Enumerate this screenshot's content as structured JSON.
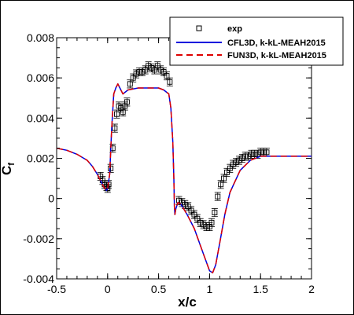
{
  "chart_data": {
    "type": "line",
    "xlabel": "x/c",
    "ylabel_main": "C",
    "ylabel_sub": "f",
    "xlim": [
      -0.5,
      2
    ],
    "ylim": [
      -0.004,
      0.008
    ],
    "xticks": [
      "-0.5",
      "0",
      "0.5",
      "1",
      "1.5",
      "2"
    ],
    "xtick_values": [
      -0.5,
      0,
      0.5,
      1,
      1.5,
      2
    ],
    "yticks": [
      "-0.004",
      "-0.002",
      "0",
      "0.002",
      "0.004",
      "0.006",
      "0.008"
    ],
    "ytick_values": [
      -0.004,
      -0.002,
      0,
      0.002,
      0.004,
      0.006,
      0.008
    ],
    "legend_position": "top-right",
    "series": [
      {
        "name": "exp",
        "kind": "scatter",
        "marker": "square",
        "color": "#000000",
        "x": [
          -0.07,
          -0.05,
          -0.03,
          -0.01,
          0.0,
          0.01,
          0.03,
          0.05,
          0.07,
          0.09,
          0.11,
          0.13,
          0.15,
          0.17,
          0.19,
          0.22,
          0.25,
          0.28,
          0.31,
          0.34,
          0.37,
          0.4,
          0.43,
          0.46,
          0.49,
          0.52,
          0.55,
          0.58,
          0.61,
          0.7,
          0.73,
          0.76,
          0.79,
          0.82,
          0.85,
          0.88,
          0.91,
          0.94,
          0.97,
          1.0,
          1.02,
          1.05,
          1.08,
          1.11,
          1.14,
          1.17,
          1.2,
          1.23,
          1.26,
          1.29,
          1.32,
          1.35,
          1.38,
          1.41,
          1.44,
          1.47,
          1.5,
          1.53,
          1.56
        ],
        "y": [
          0.0011,
          0.0009,
          0.0007,
          0.0006,
          0.0005,
          0.0007,
          0.0015,
          0.0025,
          0.0035,
          0.0042,
          0.0046,
          0.0045,
          0.0043,
          0.0046,
          0.0048,
          0.0057,
          0.006,
          0.0062,
          0.0063,
          0.0063,
          0.0064,
          0.0066,
          0.0065,
          0.0064,
          0.0066,
          0.0064,
          0.0063,
          0.0061,
          0.0058,
          -0.0001,
          -0.0002,
          -0.0003,
          -0.0004,
          -0.0006,
          -0.0008,
          -0.001,
          -0.0012,
          -0.0013,
          -0.0014,
          -0.0014,
          -0.0012,
          -0.0007,
          0.0001,
          0.0007,
          0.001,
          0.0013,
          0.0015,
          0.0017,
          0.0018,
          0.0019,
          0.002,
          0.0021,
          0.0021,
          0.0022,
          0.0022,
          0.0022,
          0.0023,
          0.0023,
          0.0023
        ],
        "yerr": 0.0002
      },
      {
        "name": "CFL3D, k-kL-MEAH2015",
        "kind": "line",
        "color": "#0000dd",
        "dash": "solid",
        "x": [
          -0.5,
          -0.4,
          -0.3,
          -0.2,
          -0.15,
          -0.1,
          -0.06,
          -0.03,
          -0.01,
          0.0,
          0.02,
          0.04,
          0.06,
          0.08,
          0.1,
          0.12,
          0.15,
          0.2,
          0.3,
          0.4,
          0.5,
          0.55,
          0.6,
          0.62,
          0.64,
          0.65,
          0.655,
          0.66,
          0.67,
          0.69,
          0.72,
          0.78,
          0.85,
          0.9,
          0.95,
          1.0,
          1.03,
          1.06,
          1.1,
          1.15,
          1.2,
          1.3,
          1.4,
          1.5,
          1.55,
          1.6,
          1.8,
          2.0
        ],
        "y": [
          0.0025,
          0.0024,
          0.0022,
          0.0019,
          0.0016,
          0.0012,
          0.0008,
          0.0005,
          0.0004,
          0.0005,
          0.0012,
          0.0035,
          0.0052,
          0.0055,
          0.0057,
          0.0055,
          0.0052,
          0.0054,
          0.0055,
          0.0055,
          0.0055,
          0.0054,
          0.0052,
          0.0045,
          0.0028,
          0.001,
          -0.0004,
          -0.0008,
          -0.0005,
          -0.0002,
          -0.0003,
          -0.0008,
          -0.0015,
          -0.0022,
          -0.0029,
          -0.0036,
          -0.0037,
          -0.0033,
          -0.0022,
          -0.0008,
          0.0003,
          0.0014,
          0.0019,
          0.0021,
          0.0021,
          0.0021,
          0.0021,
          0.0021
        ]
      },
      {
        "name": "FUN3D, k-kL-MEAH2015",
        "kind": "line",
        "color": "#dd0000",
        "dash": "dashed",
        "x": [
          -0.5,
          -0.4,
          -0.3,
          -0.2,
          -0.15,
          -0.1,
          -0.06,
          -0.03,
          -0.01,
          0.0,
          0.02,
          0.04,
          0.06,
          0.08,
          0.1,
          0.12,
          0.15,
          0.2,
          0.3,
          0.4,
          0.5,
          0.55,
          0.6,
          0.62,
          0.64,
          0.65,
          0.655,
          0.66,
          0.67,
          0.69,
          0.72,
          0.78,
          0.85,
          0.9,
          0.95,
          1.0,
          1.03,
          1.06,
          1.1,
          1.15,
          1.2,
          1.3,
          1.4,
          1.5,
          1.55,
          1.6,
          1.8,
          2.0
        ],
        "y": [
          0.0025,
          0.0024,
          0.0022,
          0.0019,
          0.0016,
          0.0012,
          0.0008,
          0.0005,
          0.0004,
          0.0005,
          0.0012,
          0.0035,
          0.0052,
          0.0055,
          0.0057,
          0.0055,
          0.0052,
          0.0054,
          0.0055,
          0.0055,
          0.0055,
          0.0054,
          0.0052,
          0.0045,
          0.0028,
          0.001,
          -0.0004,
          -0.0008,
          -0.0005,
          -0.0002,
          -0.0003,
          -0.0008,
          -0.0015,
          -0.0022,
          -0.0029,
          -0.0036,
          -0.0037,
          -0.0033,
          -0.0022,
          -0.0008,
          0.0003,
          0.0014,
          0.0019,
          0.0021,
          0.0021,
          0.0021,
          0.0021,
          0.0021
        ]
      }
    ]
  }
}
